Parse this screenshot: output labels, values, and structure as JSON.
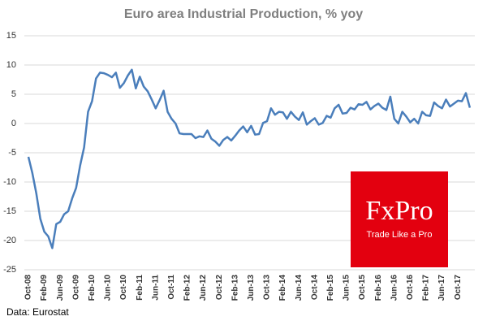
{
  "chart_data": {
    "type": "line",
    "title": "Euro area Industrial  Production, % yoy",
    "source": "Data: Eurostat",
    "logo_title": "FxPro",
    "logo_subtitle": "Trade Like a Pro",
    "color": "#4a7ebb",
    "grid": true,
    "ylim": [
      -25,
      15
    ],
    "yticks": [
      -25,
      -20,
      -15,
      -10,
      -5,
      0,
      5,
      10,
      15
    ],
    "categories": [
      "Oct-08",
      null,
      null,
      null,
      "Feb-09",
      null,
      null,
      null,
      "Jun-09",
      null,
      null,
      null,
      "Oct-09",
      null,
      null,
      null,
      "Feb-10",
      null,
      null,
      null,
      "Jun-10",
      null,
      null,
      null,
      "Oct-10",
      null,
      null,
      null,
      "Feb-11",
      null,
      null,
      null,
      "Jun-11",
      null,
      null,
      null,
      "Oct-11",
      null,
      null,
      null,
      "Feb-12",
      null,
      null,
      null,
      "Jun-12",
      null,
      null,
      null,
      "Oct-12",
      null,
      null,
      null,
      "Feb-13",
      null,
      null,
      null,
      "Jun-13",
      null,
      null,
      null,
      "Oct-13",
      null,
      null,
      null,
      "Feb-14",
      null,
      null,
      null,
      "Jun-14",
      null,
      null,
      null,
      "Oct-14",
      null,
      null,
      null,
      "Feb-15",
      null,
      null,
      null,
      "Jun-15",
      null,
      null,
      null,
      "Oct-15",
      null,
      null,
      null,
      "Feb-16",
      null,
      null,
      null,
      "Jun-16",
      null,
      null,
      null,
      "Oct-16",
      null,
      null,
      null,
      "Feb-17",
      null,
      null,
      null,
      "Jun-17",
      null,
      null,
      null,
      "Oct-17",
      null,
      null,
      null
    ],
    "values": [
      -5.7,
      -8.5,
      -12,
      -16.3,
      -18.5,
      -19.3,
      -21.3,
      -17.2,
      -16.8,
      -15.5,
      -15,
      -12.8,
      -11,
      -7.2,
      -4.1,
      2,
      3.8,
      7.7,
      8.7,
      8.6,
      8.3,
      7.9,
      8.7,
      6.1,
      6.9,
      8.2,
      9.2,
      6,
      8,
      6.3,
      5.5,
      4.1,
      2.6,
      4,
      5.6,
      2,
      0.8,
      0,
      -1.7,
      -1.8,
      -1.8,
      -1.8,
      -2.5,
      -2.2,
      -2.3,
      -1.2,
      -2.6,
      -3.1,
      -3.8,
      -2.8,
      -2.3,
      -2.9,
      -2.1,
      -1.2,
      -0.5,
      -1.5,
      -0.4,
      -1.9,
      -1.8,
      0.1,
      0.4,
      2.6,
      1.5,
      2,
      1.9,
      0.8,
      2,
      1.2,
      0.6,
      1.9,
      -0.2,
      0.4,
      0.9,
      -0.2,
      0.1,
      1.3,
      1,
      2.6,
      3.2,
      1.7,
      1.8,
      2.7,
      2.4,
      3.3,
      3.2,
      3.7,
      2.4,
      3,
      3.4,
      2.7,
      2.3,
      4.6,
      0.8,
      0,
      2,
      1.2,
      0.2,
      0.8,
      0,
      2,
      1.4,
      1.3,
      3.6,
      3,
      2.6,
      4.1,
      2.9,
      3.4,
      3.9,
      3.8,
      5.2,
      2.7
    ]
  }
}
